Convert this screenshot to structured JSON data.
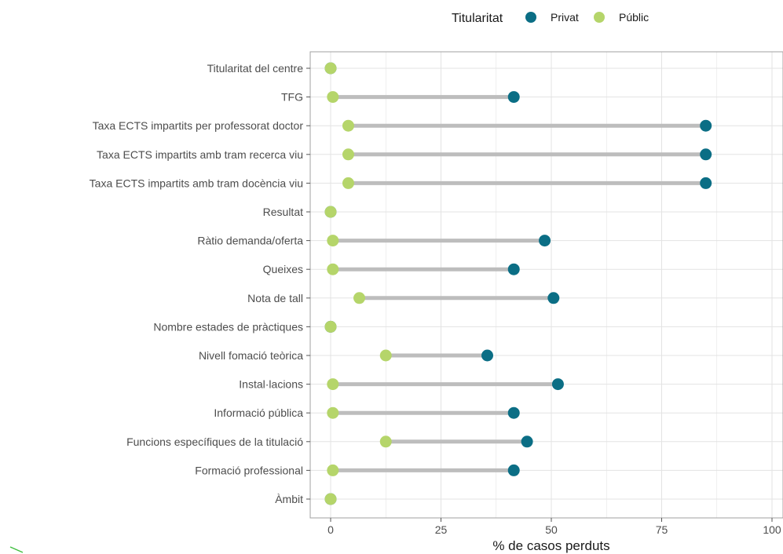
{
  "chart_data": {
    "type": "dumbbell",
    "title": "",
    "xlabel": "% de casos perduts",
    "ylabel": "",
    "xlim": [
      -5,
      102
    ],
    "xticks": [
      "0",
      "25",
      "50",
      "75",
      "100"
    ],
    "legend": {
      "title": "Titularitat",
      "position": "top",
      "items": [
        {
          "name": "Privat",
          "color": "#0b6e85"
        },
        {
          "name": "Públic",
          "color": "#b5d56a"
        }
      ]
    },
    "segment_color": "#bdbdbd",
    "grid": true,
    "categories": [
      "Titularitat del centre",
      "TFG",
      "Taxa ECTS impartits per professorat doctor",
      "Taxa ECTS impartits amb tram recerca viu",
      "Taxa ECTS impartits amb tram docència viu",
      "Resultat",
      "Ràtio demanda/oferta",
      "Queixes",
      "Nota de tall",
      "Nombre estades de pràctiques",
      "Nivell fomació teòrica",
      "Instal·lacions",
      "Informació pública",
      "Funcions específiques de la titulació",
      "Formació professional",
      "Àmbit"
    ],
    "series": [
      {
        "name": "Privat",
        "values": [
          0,
          41.5,
          85,
          85,
          85,
          0,
          48.5,
          41.5,
          50.5,
          0,
          35.5,
          51.5,
          41.5,
          44.5,
          41.5,
          0
        ]
      },
      {
        "name": "Públic",
        "values": [
          0,
          0.5,
          4,
          4,
          4,
          0,
          0.5,
          0.5,
          6.5,
          0,
          12.5,
          0.5,
          0.5,
          12.5,
          0.5,
          0
        ]
      }
    ]
  }
}
